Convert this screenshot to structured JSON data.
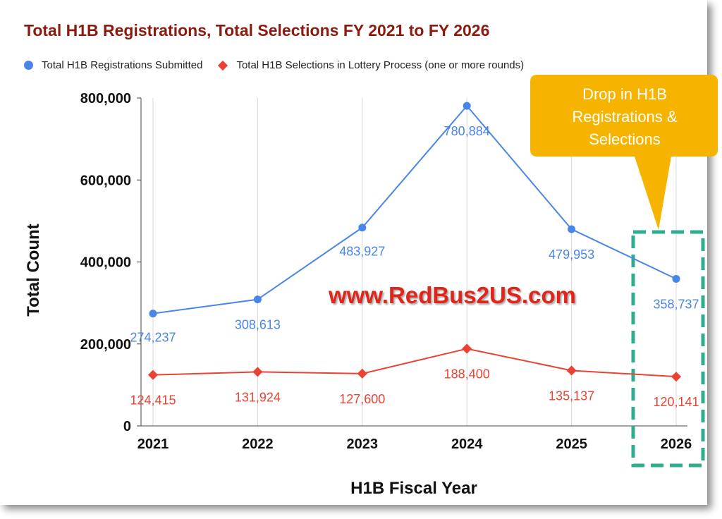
{
  "title": "Total H1B Registrations, Total Selections FY 2021 to FY 2026",
  "legend": {
    "registrations": "Total H1B Registrations Submitted",
    "selections": "Total H1B Selections in Lottery Process (one or more rounds)"
  },
  "callout": {
    "lines": [
      "Drop in H1B",
      "Registrations &",
      "Selections"
    ]
  },
  "watermark": "www.RedBus2US.com",
  "colors": {
    "registrations": "#4a86e8",
    "selections": "#ea4335",
    "title": "#8b1a10",
    "callout": "#f6b400",
    "highlight_box": "#2fae8f"
  },
  "chart_data": {
    "type": "line",
    "title": "Total H1B Registrations, Total Selections FY 2021 to FY 2026",
    "xlabel": "H1B Fiscal Year",
    "ylabel": "Total Count",
    "categories": [
      "2021",
      "2022",
      "2023",
      "2024",
      "2025",
      "2026"
    ],
    "ylim": [
      0,
      800000
    ],
    "yticks": [
      0,
      200000,
      400000,
      600000,
      800000
    ],
    "ytick_labels": [
      "0",
      "200,000",
      "400,000",
      "600,000",
      "800,000"
    ],
    "grid": "vertical",
    "legend_position": "top-left",
    "series": [
      {
        "name": "Total H1B Registrations Submitted",
        "marker": "circle",
        "values": [
          274237,
          308613,
          483927,
          780884,
          479953,
          358737
        ],
        "labels": [
          "274,237",
          "308,613",
          "483,927",
          "780,884",
          "479,953",
          "358,737"
        ]
      },
      {
        "name": "Total H1B Selections in Lottery Process (one or more rounds)",
        "marker": "diamond",
        "values": [
          124415,
          131924,
          127600,
          188400,
          135137,
          120141
        ],
        "labels": [
          "124,415",
          "131,924",
          "127,600",
          "188,400",
          "135,137",
          "120,141"
        ]
      }
    ],
    "annotations": [
      "Drop in H1B Registrations & Selections"
    ]
  }
}
